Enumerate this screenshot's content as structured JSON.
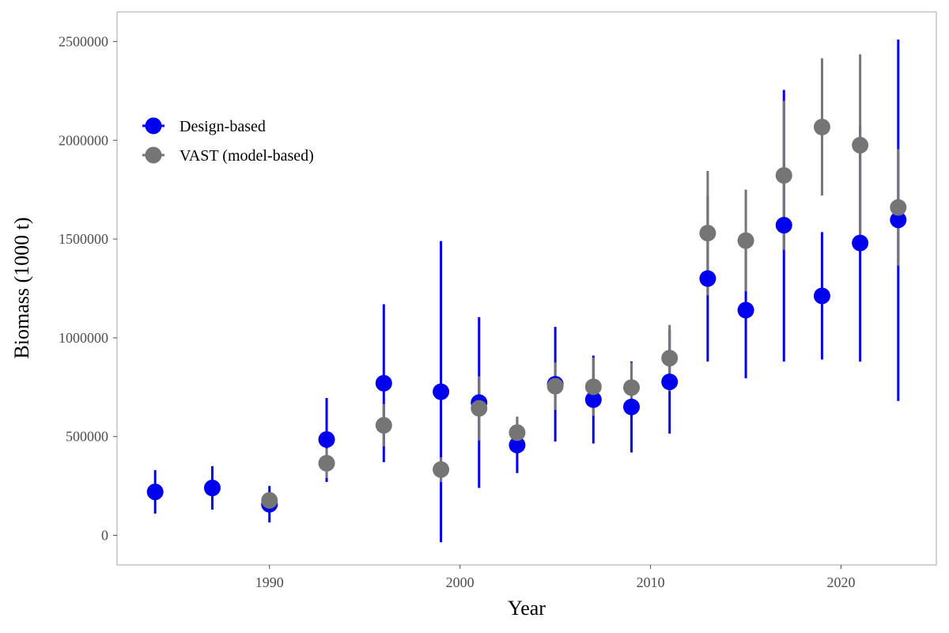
{
  "chart_data": {
    "type": "scatter",
    "title": "",
    "xlabel": "Year",
    "ylabel": "Biomass (1000 t)",
    "xlim": [
      1982,
      2025
    ],
    "ylim": [
      -150000,
      2650000
    ],
    "x_ticks": [
      1990,
      2000,
      2010,
      2020
    ],
    "y_ticks": [
      0,
      500000,
      1000000,
      1500000,
      2000000,
      2500000
    ],
    "grid": false,
    "legend_position": "top-left",
    "series": [
      {
        "name": "Design-based",
        "color": "#0000ee",
        "points": [
          {
            "x": 1984,
            "y": 220000,
            "lo": 110000,
            "hi": 330000
          },
          {
            "x": 1987,
            "y": 240000,
            "lo": 130000,
            "hi": 350000
          },
          {
            "x": 1990,
            "y": 157000,
            "lo": 65000,
            "hi": 250000
          },
          {
            "x": 1993,
            "y": 485000,
            "lo": 270000,
            "hi": 695000
          },
          {
            "x": 1996,
            "y": 770000,
            "lo": 370000,
            "hi": 1170000
          },
          {
            "x": 1999,
            "y": 727000,
            "lo": -35000,
            "hi": 1490000
          },
          {
            "x": 2001,
            "y": 672000,
            "lo": 240000,
            "hi": 1105000
          },
          {
            "x": 2003,
            "y": 457000,
            "lo": 315000,
            "hi": 600000
          },
          {
            "x": 2005,
            "y": 765000,
            "lo": 475000,
            "hi": 1055000
          },
          {
            "x": 2007,
            "y": 687000,
            "lo": 465000,
            "hi": 910000
          },
          {
            "x": 2009,
            "y": 650000,
            "lo": 420000,
            "hi": 880000
          },
          {
            "x": 2011,
            "y": 777000,
            "lo": 515000,
            "hi": 1040000
          },
          {
            "x": 2013,
            "y": 1300000,
            "lo": 880000,
            "hi": 1715000
          },
          {
            "x": 2015,
            "y": 1140000,
            "lo": 795000,
            "hi": 1485000
          },
          {
            "x": 2017,
            "y": 1570000,
            "lo": 880000,
            "hi": 2255000
          },
          {
            "x": 2019,
            "y": 1212000,
            "lo": 890000,
            "hi": 1535000
          },
          {
            "x": 2021,
            "y": 1480000,
            "lo": 880000,
            "hi": 2075000
          },
          {
            "x": 2023,
            "y": 1597000,
            "lo": 680000,
            "hi": 2510000
          }
        ]
      },
      {
        "name": "VAST (model-based)",
        "color": "#757575",
        "points": [
          {
            "x": 1990,
            "y": 177000,
            "lo": 140000,
            "hi": 215000
          },
          {
            "x": 1993,
            "y": 365000,
            "lo": 290000,
            "hi": 440000
          },
          {
            "x": 1996,
            "y": 557000,
            "lo": 450000,
            "hi": 665000
          },
          {
            "x": 1999,
            "y": 333000,
            "lo": 270000,
            "hi": 395000
          },
          {
            "x": 2001,
            "y": 643000,
            "lo": 480000,
            "hi": 805000
          },
          {
            "x": 2003,
            "y": 520000,
            "lo": 440000,
            "hi": 600000
          },
          {
            "x": 2005,
            "y": 755000,
            "lo": 635000,
            "hi": 875000
          },
          {
            "x": 2007,
            "y": 752000,
            "lo": 605000,
            "hi": 900000
          },
          {
            "x": 2009,
            "y": 748000,
            "lo": 620000,
            "hi": 875000
          },
          {
            "x": 2011,
            "y": 897000,
            "lo": 730000,
            "hi": 1065000
          },
          {
            "x": 2013,
            "y": 1530000,
            "lo": 1215000,
            "hi": 1845000
          },
          {
            "x": 2015,
            "y": 1492000,
            "lo": 1235000,
            "hi": 1750000
          },
          {
            "x": 2017,
            "y": 1822000,
            "lo": 1445000,
            "hi": 2200000
          },
          {
            "x": 2019,
            "y": 2067000,
            "lo": 1720000,
            "hi": 2415000
          },
          {
            "x": 2021,
            "y": 1975000,
            "lo": 1515000,
            "hi": 2435000
          },
          {
            "x": 2023,
            "y": 1660000,
            "lo": 1365000,
            "hi": 1955000
          }
        ]
      }
    ]
  }
}
